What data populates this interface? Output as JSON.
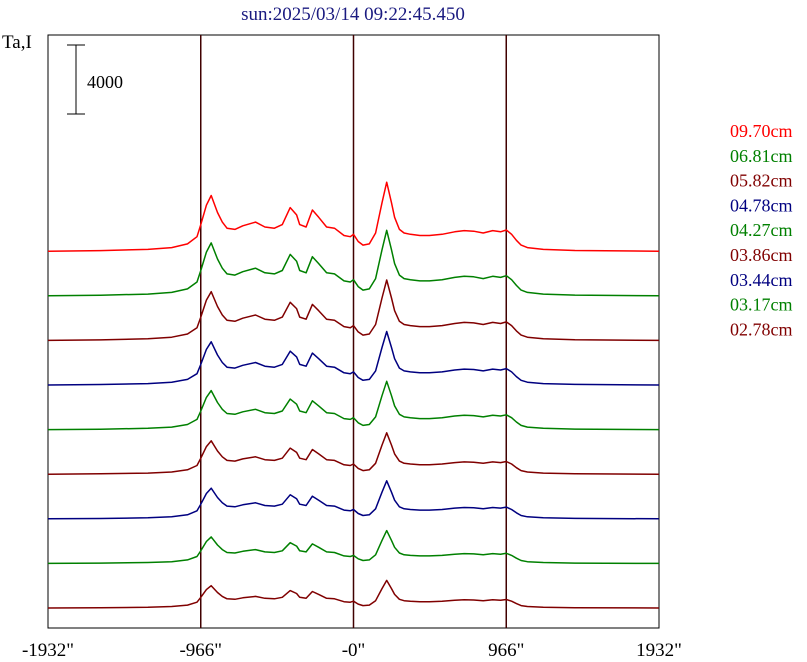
{
  "chart_data": {
    "type": "line",
    "title": "sun:2025/03/14 09:22:45.450",
    "ylabel": "Ta,I",
    "scale_bar_label": "4000",
    "scale_bar_value": 4000,
    "x_ticks": [
      {
        "value": -1932,
        "label": "-1932\""
      },
      {
        "value": -966,
        "label": "-966\""
      },
      {
        "value": 0,
        "label": "-0\""
      },
      {
        "value": 966,
        "label": "966\""
      },
      {
        "value": 1932,
        "label": "1932\""
      }
    ],
    "xlim": [
      -1932,
      1932
    ],
    "vertical_lines_at": [
      -966,
      0,
      966
    ],
    "grid": false,
    "legend_placement": "right",
    "series": [
      {
        "name": "09.70cm",
        "color": "#ff0000",
        "offset": 8
      },
      {
        "name": "06.81cm",
        "color": "#008000",
        "offset": 7
      },
      {
        "name": "05.82cm",
        "color": "#800000",
        "offset": 6
      },
      {
        "name": "04.78cm",
        "color": "#000080",
        "offset": 5
      },
      {
        "name": "04.27cm",
        "color": "#008000",
        "offset": 4
      },
      {
        "name": "03.86cm",
        "color": "#800000",
        "offset": 3
      },
      {
        "name": "03.44cm",
        "color": "#000080",
        "offset": 2
      },
      {
        "name": "03.17cm",
        "color": "#008000",
        "offset": 1
      },
      {
        "name": "02.78cm",
        "color": "#800000",
        "offset": 0
      }
    ],
    "profile_x": [
      -1932,
      -1600,
      -1300,
      -1150,
      -1050,
      -990,
      -966,
      -930,
      -900,
      -860,
      -830,
      -800,
      -750,
      -700,
      -620,
      -560,
      -500,
      -450,
      -400,
      -360,
      -340,
      -300,
      -260,
      -220,
      -170,
      -120,
      -60,
      -20,
      0,
      30,
      60,
      100,
      140,
      180,
      210,
      240,
      260,
      290,
      320,
      360,
      420,
      480,
      560,
      640,
      700,
      760,
      820,
      880,
      930,
      966,
      1000,
      1030,
      1060,
      1100,
      1200,
      1400,
      1932
    ],
    "profile_y": [
      0,
      50,
      150,
      300,
      600,
      1200,
      2200,
      3800,
      4600,
      3200,
      2400,
      1900,
      1800,
      2100,
      2400,
      2000,
      1900,
      2200,
      3600,
      3000,
      2200,
      2000,
      3400,
      2800,
      2000,
      1900,
      1300,
      1200,
      1400,
      800,
      500,
      600,
      1500,
      4000,
      5700,
      4000,
      2800,
      1800,
      1500,
      1400,
      1300,
      1300,
      1400,
      1600,
      1700,
      1650,
      1500,
      1700,
      1600,
      1750,
      1400,
      900,
      500,
      300,
      150,
      60,
      0
    ],
    "series_amplitude": [
      4000,
      3800,
      3500,
      3100,
      2800,
      2400,
      2200,
      1900,
      1600
    ]
  },
  "legend_title": ""
}
